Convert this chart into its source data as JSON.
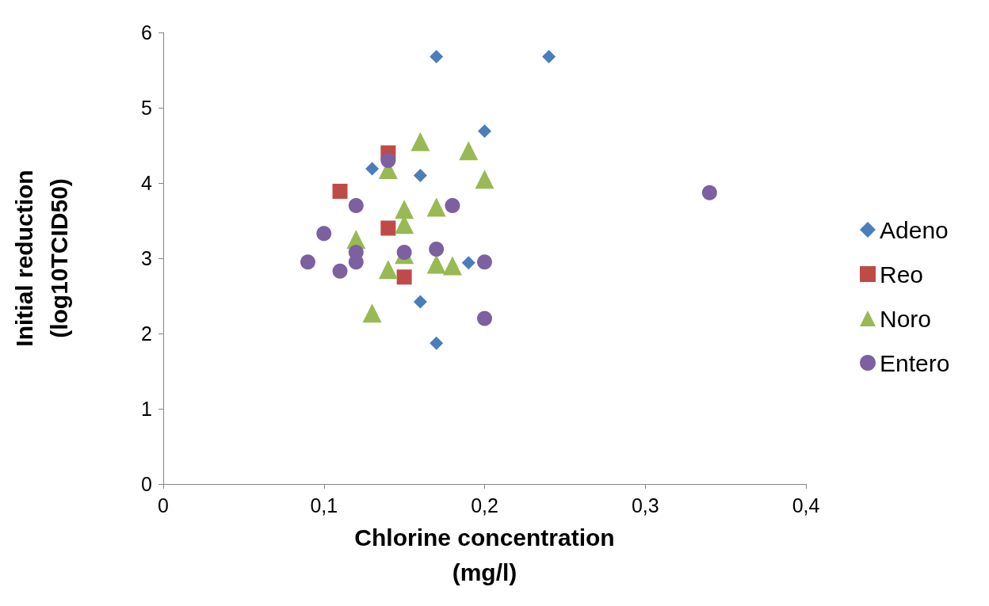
{
  "chart_data": {
    "type": "scatter",
    "xlabel": "Chlorine concentration\n(mg/l)",
    "ylabel": "Initial reduction\n(log10TCID50)",
    "xlim": [
      0,
      0.4
    ],
    "xticks": [
      0,
      {
        "value": 0.1,
        "label": "0,1"
      },
      {
        "value": 0.2,
        "label": "0,2"
      },
      {
        "value": 0.3,
        "label": "0,3"
      },
      {
        "value": 0.4,
        "label": "0,4"
      }
    ],
    "ylim": [
      0,
      6
    ],
    "yticks": [
      0,
      1,
      2,
      3,
      4,
      5,
      6
    ],
    "grid": false,
    "legend": "right",
    "series": [
      {
        "name": "Adeno",
        "color": "#4a7ebb",
        "marker": "diamond",
        "x": [
          0.17,
          0.24,
          0.2,
          0.13,
          0.16,
          0.19,
          0.16,
          0.17
        ],
        "values": [
          5.68,
          5.68,
          4.69,
          4.19,
          4.1,
          2.94,
          2.42,
          1.87
        ]
      },
      {
        "name": "Reo",
        "color": "#be4b48",
        "marker": "square",
        "x": [
          0.14,
          0.11,
          0.14,
          0.15
        ],
        "values": [
          4.4,
          3.89,
          3.4,
          2.75
        ]
      },
      {
        "name": "Noro",
        "color": "#98b954",
        "marker": "triangle",
        "x": [
          0.16,
          0.19,
          0.14,
          0.2,
          0.15,
          0.17,
          0.15,
          0.12,
          0.15,
          0.14,
          0.17,
          0.18,
          0.13
        ],
        "values": [
          4.55,
          4.43,
          4.18,
          4.05,
          3.65,
          3.68,
          3.45,
          3.25,
          3.05,
          2.85,
          2.92,
          2.9,
          2.27
        ]
      },
      {
        "name": "Entero",
        "color": "#7d60a0",
        "marker": "circle",
        "x": [
          0.14,
          0.12,
          0.18,
          0.34,
          0.1,
          0.09,
          0.12,
          0.12,
          0.11,
          0.15,
          0.17,
          0.2,
          0.2
        ],
        "values": [
          4.3,
          3.7,
          3.7,
          3.87,
          3.33,
          2.95,
          3.08,
          2.95,
          2.83,
          3.08,
          3.12,
          2.95,
          2.2
        ]
      }
    ]
  }
}
